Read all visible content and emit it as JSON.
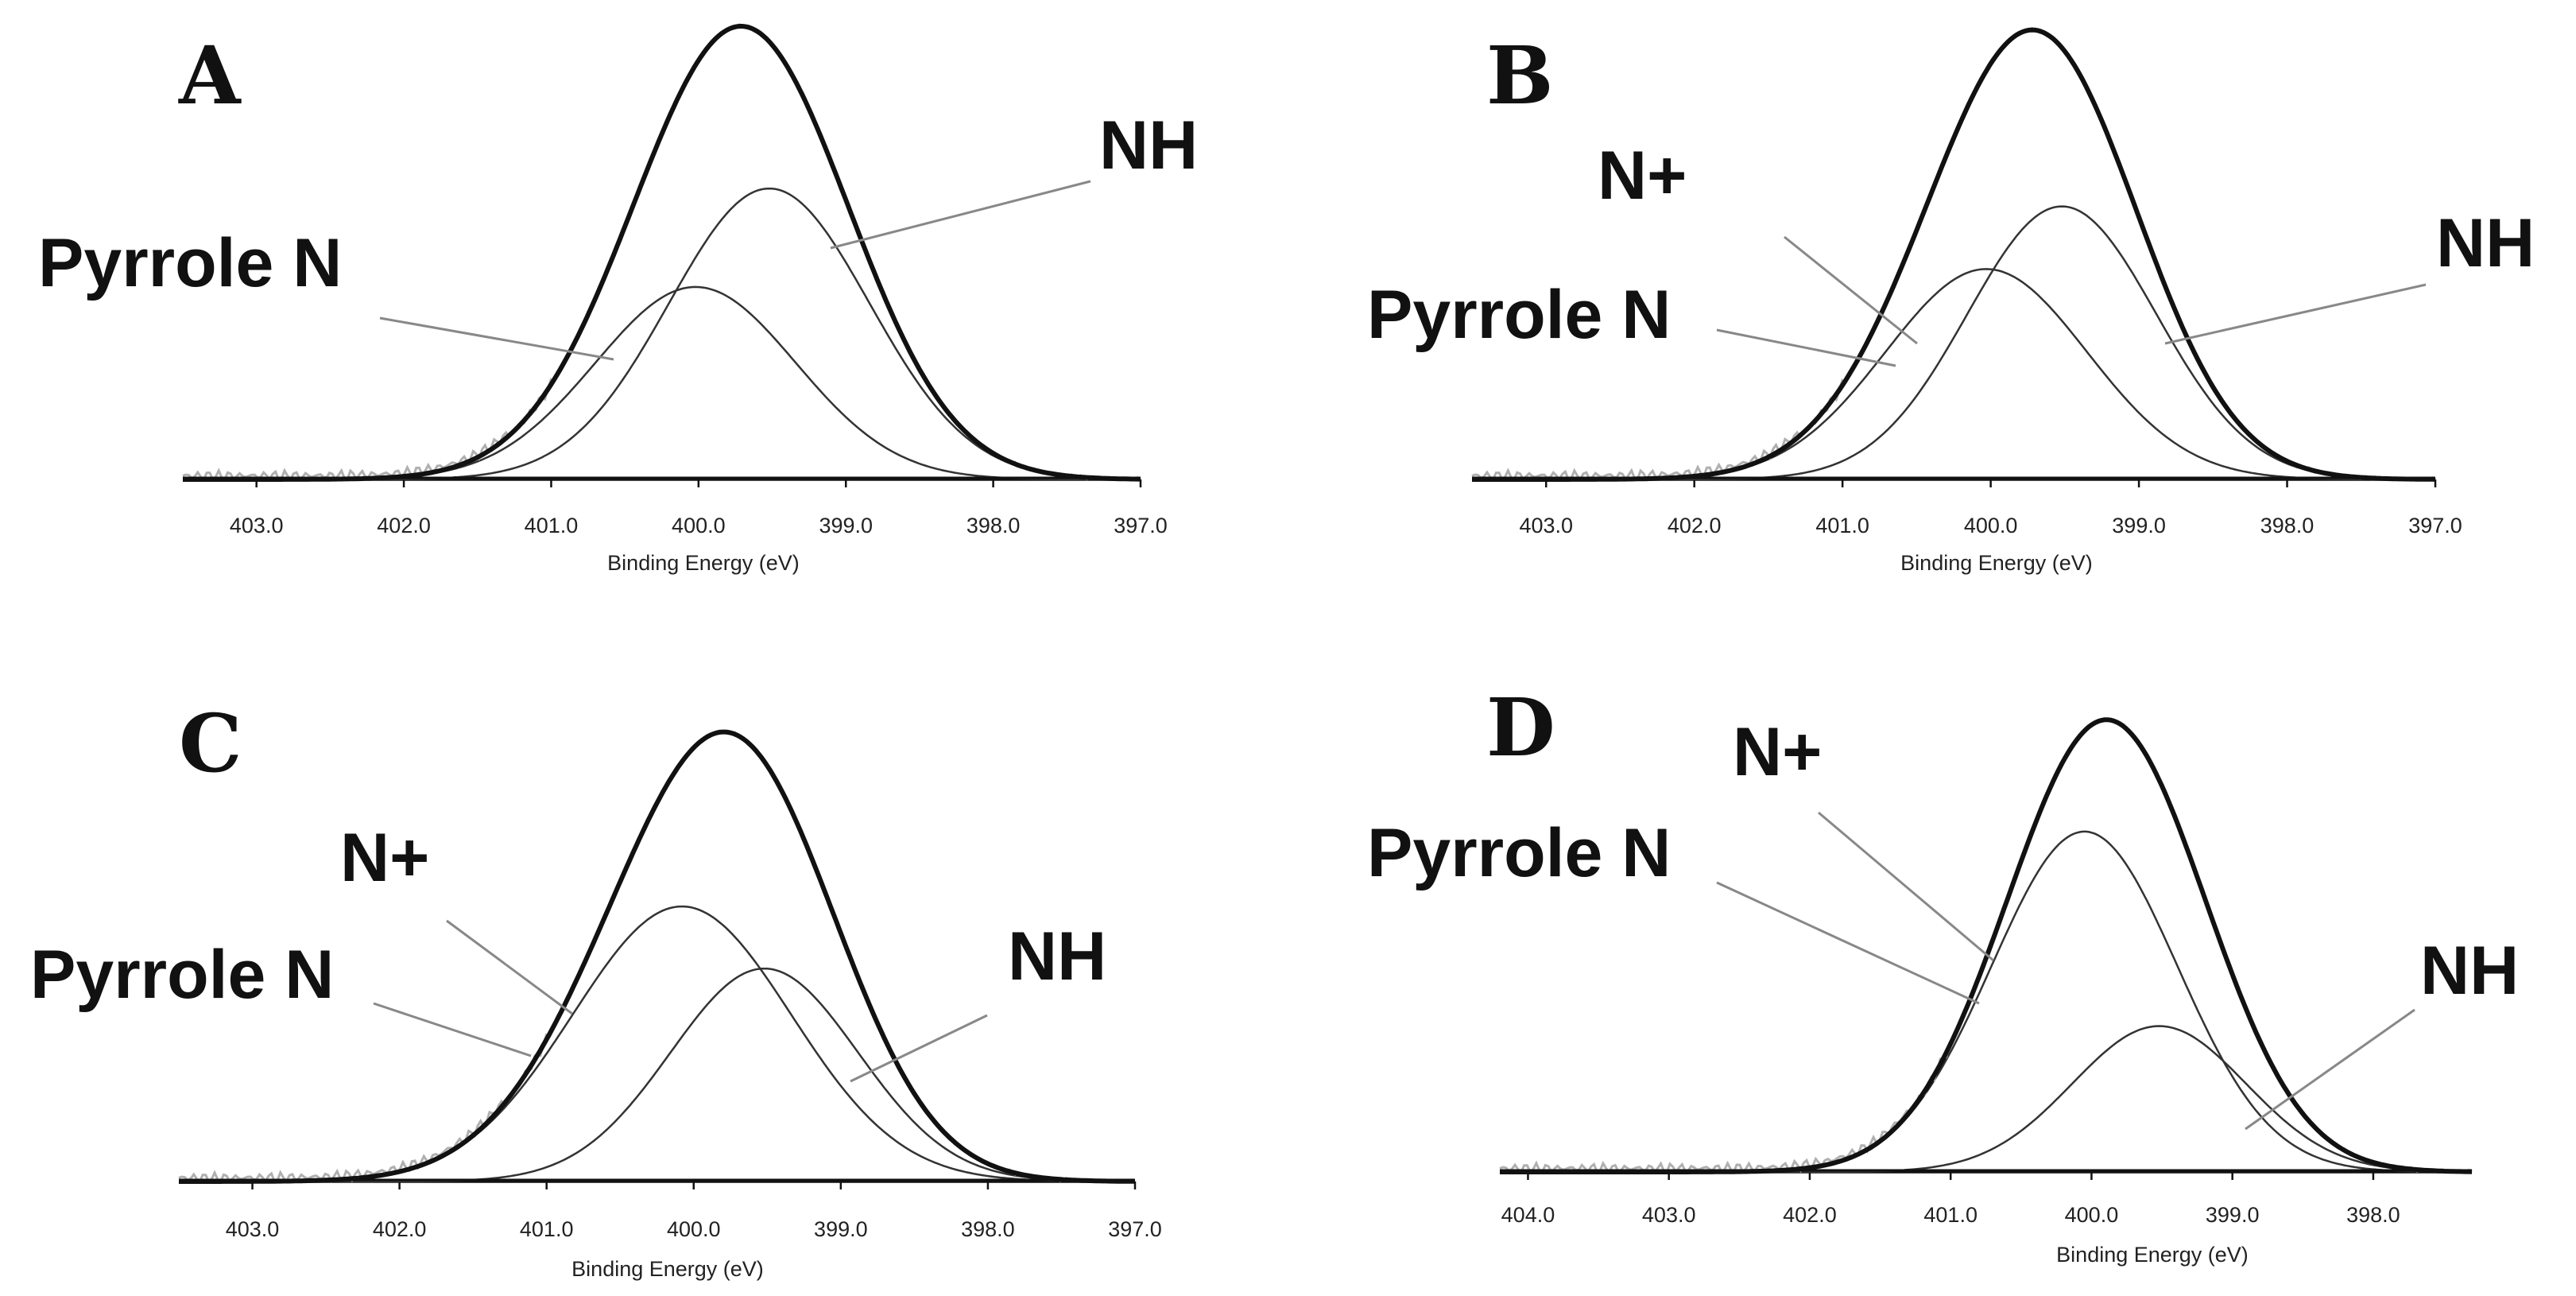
{
  "chart_data": [
    {
      "type": "line",
      "panel": "A",
      "xlabel": "Binding Energy (eV)",
      "ylabel": "",
      "x_reversed": true,
      "xlim": [
        403.5,
        397.0
      ],
      "xticks": [
        403.0,
        402.0,
        401.0,
        400.0,
        399.0,
        398.0,
        397.0
      ],
      "tick_labels": [
        "403.0",
        "402.0",
        "401.0",
        "400.0",
        "399.0",
        "398.0",
        "397.0"
      ],
      "ylim": [
        0,
        1.0
      ],
      "series": [
        {
          "name": "Pyrrole N",
          "center": 400.02,
          "height": 0.43,
          "fwhm": 1.6
        },
        {
          "name": "NH",
          "center": 399.52,
          "height": 0.65,
          "fwhm": 1.6
        }
      ],
      "annotations": [
        {
          "text": "Pyrrole N",
          "x": 400.5,
          "y": 0.28
        },
        {
          "text": "NH",
          "x": 398.8,
          "y": 0.52
        }
      ]
    },
    {
      "type": "line",
      "panel": "B",
      "xlabel": "Binding Energy (eV)",
      "ylabel": "",
      "x_reversed": true,
      "xlim": [
        403.5,
        397.0
      ],
      "xticks": [
        403.0,
        402.0,
        401.0,
        400.0,
        399.0,
        398.0,
        397.0
      ],
      "tick_labels": [
        "403.0",
        "402.0",
        "401.0",
        "400.0",
        "399.0",
        "398.0",
        "397.0"
      ],
      "ylim": [
        0,
        1.0
      ],
      "series": [
        {
          "name": "Pyrrole N",
          "center": 400.03,
          "height": 0.47,
          "fwhm": 1.6
        },
        {
          "name": "NH",
          "center": 399.52,
          "height": 0.61,
          "fwhm": 1.5
        }
      ],
      "annotations": [
        {
          "text": "N+",
          "x": 400.9,
          "y": 0.34
        },
        {
          "text": "Pyrrole N",
          "x": 400.9,
          "y": 0.25
        },
        {
          "text": "NH",
          "x": 399.1,
          "y": 0.33
        }
      ]
    },
    {
      "type": "line",
      "panel": "C",
      "xlabel": "Binding Energy (eV)",
      "ylabel": "",
      "x_reversed": true,
      "xlim": [
        403.5,
        397.0
      ],
      "xticks": [
        403.0,
        402.0,
        401.0,
        400.0,
        399.0,
        398.0,
        397.0
      ],
      "tick_labels": [
        "403.0",
        "402.0",
        "401.0",
        "400.0",
        "399.0",
        "398.0",
        "397.0"
      ],
      "ylim": [
        0,
        1.0
      ],
      "series": [
        {
          "name": "Pyrrole N",
          "center": 400.08,
          "height": 0.62,
          "fwhm": 1.75
        },
        {
          "name": "NH",
          "center": 399.52,
          "height": 0.48,
          "fwhm": 1.5
        }
      ],
      "annotations": [
        {
          "text": "N+",
          "x": 400.7,
          "y": 0.4
        },
        {
          "text": "Pyrrole N",
          "x": 400.95,
          "y": 0.3
        },
        {
          "text": "NH",
          "x": 399.1,
          "y": 0.22
        }
      ]
    },
    {
      "type": "line",
      "panel": "D",
      "xlabel": "Binding Energy (eV)",
      "ylabel": "",
      "x_reversed": true,
      "xlim": [
        404.2,
        397.3
      ],
      "xticks": [
        404.0,
        403.0,
        402.0,
        401.0,
        400.0,
        399.0,
        398.0
      ],
      "tick_labels": [
        "404.0",
        "403.0",
        "402.0",
        "401.0",
        "400.0",
        "399.0",
        "398.0"
      ],
      "ylim": [
        0,
        1.0
      ],
      "series": [
        {
          "name": "Pyrrole N",
          "center": 400.05,
          "height": 0.77,
          "fwhm": 1.55
        },
        {
          "name": "NH",
          "center": 399.52,
          "height": 0.33,
          "fwhm": 1.45
        }
      ],
      "annotations": [
        {
          "text": "N+",
          "x": 400.6,
          "y": 0.5
        },
        {
          "text": "Pyrrole N",
          "x": 400.85,
          "y": 0.4
        },
        {
          "text": "NH",
          "x": 399.3,
          "y": 0.12
        }
      ]
    }
  ]
}
